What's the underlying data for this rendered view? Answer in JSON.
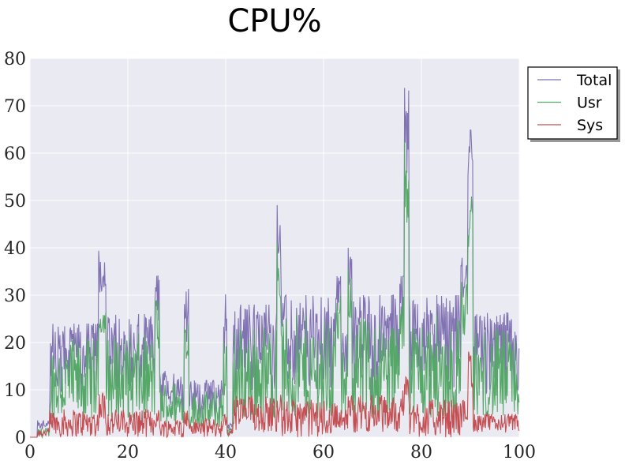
{
  "chart_data": {
    "type": "line",
    "title": "CPU%",
    "xlabel": "",
    "ylabel": "",
    "xlim": [
      0,
      100
    ],
    "ylim": [
      0,
      80
    ],
    "x_ticks": [
      "0",
      "20",
      "40",
      "60",
      "80",
      "100"
    ],
    "y_ticks": [
      "0",
      "10",
      "20",
      "30",
      "40",
      "50",
      "60",
      "70",
      "80"
    ],
    "grid": true,
    "legend": "outside-upper-right",
    "colors": {
      "plot_bg": "#EAEAF2",
      "grid": "#FFFFFF"
    },
    "segments": [
      {
        "start": 0,
        "end": 1.5,
        "total": [
          0,
          0
        ],
        "usr": [
          0,
          0
        ],
        "sys": [
          0,
          0
        ]
      },
      {
        "start": 1.5,
        "end": 4,
        "total": [
          1,
          4
        ],
        "usr": [
          0,
          2
        ],
        "sys": [
          0,
          2
        ]
      },
      {
        "start": 4,
        "end": 14,
        "total": [
          6,
          24
        ],
        "usr": [
          4,
          21
        ],
        "sys": [
          0,
          6
        ]
      },
      {
        "start": 14,
        "end": 15.5,
        "total": [
          30,
          41.5
        ],
        "usr": [
          22,
          28
        ],
        "sys": [
          3,
          10
        ]
      },
      {
        "start": 15.5,
        "end": 25.5,
        "total": [
          6,
          26
        ],
        "usr": [
          4,
          22
        ],
        "sys": [
          0,
          6
        ]
      },
      {
        "start": 25.5,
        "end": 26.5,
        "total": [
          22,
          37
        ],
        "usr": [
          18,
          30
        ],
        "sys": [
          2,
          6
        ]
      },
      {
        "start": 26.5,
        "end": 31.5,
        "total": [
          5,
          14
        ],
        "usr": [
          3,
          12
        ],
        "sys": [
          0,
          4
        ]
      },
      {
        "start": 31.5,
        "end": 32.5,
        "total": [
          20,
          32
        ],
        "usr": [
          16,
          26
        ],
        "sys": [
          2,
          6
        ]
      },
      {
        "start": 32.5,
        "end": 39.5,
        "total": [
          3,
          12
        ],
        "usr": [
          2,
          10
        ],
        "sys": [
          0,
          4
        ]
      },
      {
        "start": 39.5,
        "end": 40.2,
        "total": [
          10,
          37
        ],
        "usr": [
          8,
          32
        ],
        "sys": [
          1,
          5
        ]
      },
      {
        "start": 40.2,
        "end": 41.5,
        "total": [
          0,
          3
        ],
        "usr": [
          0,
          2
        ],
        "sys": [
          0,
          2
        ]
      },
      {
        "start": 41.5,
        "end": 50.5,
        "total": [
          6,
          28
        ],
        "usr": [
          4,
          24
        ],
        "sys": [
          1,
          9
        ]
      },
      {
        "start": 50.5,
        "end": 51.3,
        "total": [
          35,
          52
        ],
        "usr": [
          28,
          44
        ],
        "sys": [
          3,
          10
        ]
      },
      {
        "start": 51.3,
        "end": 62.5,
        "total": [
          6,
          30
        ],
        "usr": [
          4,
          26
        ],
        "sys": [
          0,
          8
        ]
      },
      {
        "start": 62.5,
        "end": 63.5,
        "total": [
          26,
          34
        ],
        "usr": [
          20,
          30
        ],
        "sys": [
          2,
          7
        ]
      },
      {
        "start": 63.5,
        "end": 65,
        "total": [
          6,
          22
        ],
        "usr": [
          4,
          18
        ],
        "sys": [
          1,
          6
        ]
      },
      {
        "start": 65,
        "end": 65.8,
        "total": [
          30,
          40
        ],
        "usr": [
          25,
          36
        ],
        "sys": [
          4,
          9
        ]
      },
      {
        "start": 65.8,
        "end": 75.5,
        "total": [
          6,
          30
        ],
        "usr": [
          4,
          26
        ],
        "sys": [
          1,
          9
        ]
      },
      {
        "start": 75.5,
        "end": 76.5,
        "total": [
          20,
          34
        ],
        "usr": [
          18,
          30
        ],
        "sys": [
          3,
          10
        ]
      },
      {
        "start": 76.5,
        "end": 77.5,
        "total": [
          55,
          76
        ],
        "usr": [
          45,
          65.5
        ],
        "sys": [
          8,
          13
        ]
      },
      {
        "start": 77.5,
        "end": 88,
        "total": [
          6,
          30
        ],
        "usr": [
          4,
          26
        ],
        "sys": [
          0,
          8
        ]
      },
      {
        "start": 88,
        "end": 89.5,
        "total": [
          24,
          40
        ],
        "usr": [
          20,
          34
        ],
        "sys": [
          2,
          8
        ]
      },
      {
        "start": 89.5,
        "end": 90.5,
        "total": [
          50,
          66.5
        ],
        "usr": [
          40,
          51
        ],
        "sys": [
          10,
          19
        ]
      },
      {
        "start": 90.5,
        "end": 100,
        "total": [
          6,
          26.5
        ],
        "usr": [
          4,
          23
        ],
        "sys": [
          1,
          5
        ]
      }
    ],
    "series": [
      {
        "name": "Total",
        "color": "#8172B2"
      },
      {
        "name": "Usr",
        "color": "#55A868"
      },
      {
        "name": "Sys",
        "color": "#C44E52"
      }
    ]
  }
}
